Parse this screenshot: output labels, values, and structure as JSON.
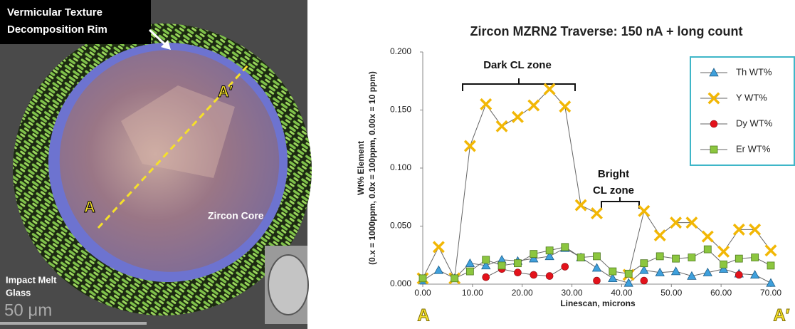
{
  "image": {
    "rim_label": [
      "Vermicular Texture",
      "Decomposition Rim"
    ],
    "section_start": "A",
    "section_end": "A′",
    "core_label": "Zircon Core",
    "matrix_label": [
      "Impact Melt",
      "Glass"
    ],
    "scale_label": "50 μm"
  },
  "chart_data": {
    "type": "line",
    "title": "Zircon MZRN2 Traverse: 150 nA + long count",
    "y_label": [
      "Wt% Element",
      "(0.x = 1000ppm, 0.0x = 100ppm, 0.00x = 10 ppm)"
    ],
    "x_label": "Linescan, microns",
    "annotations": {
      "dark_zone": "Dark CL zone",
      "bright_zone": [
        "Bright",
        "CL zone"
      ]
    },
    "endpoint_labels": [
      "A",
      "A′"
    ],
    "x": [
      0,
      3.2,
      6.4,
      9.5,
      12.7,
      15.9,
      19.1,
      22.3,
      25.5,
      28.6,
      31.8,
      35,
      38.2,
      41.4,
      44.5,
      47.7,
      50.9,
      54.1,
      57.3,
      60.5,
      63.6,
      66.8,
      70
    ],
    "series": [
      {
        "name": "Th WT%",
        "color": "#3fa0dc",
        "marker": "triangle",
        "values": [
          0.003,
          0.012,
          0.005,
          0.018,
          0.016,
          0.021,
          0.02,
          0.022,
          0.024,
          0.031,
          0.023,
          0.014,
          0.005,
          0.001,
          0.012,
          0.01,
          0.011,
          0.007,
          0.01,
          0.013,
          0.009,
          0.008,
          0.001
        ]
      },
      {
        "name": "Y WT%",
        "color": "#f2b705",
        "marker": "x",
        "values": [
          0.005,
          0.032,
          0.005,
          0.119,
          0.155,
          0.136,
          0.144,
          0.154,
          0.168,
          0.153,
          0.068,
          0.061,
          null,
          0.008,
          0.063,
          0.042,
          0.053,
          0.053,
          0.041,
          0.028,
          0.047,
          0.047,
          0.029
        ]
      },
      {
        "name": "Dy WT%",
        "color": "#e3121b",
        "marker": "circle",
        "values": [
          null,
          null,
          null,
          null,
          0.006,
          0.013,
          0.01,
          0.008,
          0.007,
          0.015,
          null,
          0.003,
          null,
          null,
          0.003,
          null,
          null,
          null,
          null,
          null,
          0.008,
          null,
          null
        ]
      },
      {
        "name": "Er WT%",
        "color": "#8cc63f",
        "marker": "square",
        "values": [
          0.005,
          null,
          0.005,
          0.011,
          0.021,
          0.016,
          0.018,
          0.026,
          0.029,
          0.032,
          0.023,
          0.024,
          0.011,
          0.009,
          0.018,
          0.024,
          0.022,
          0.023,
          0.03,
          0.017,
          0.022,
          0.023,
          0.016
        ]
      }
    ],
    "xlim": [
      0,
      70
    ],
    "xticks": [
      {
        "value": 0,
        "label": "0.00"
      },
      {
        "value": 10,
        "label": "10.00"
      },
      {
        "value": 20,
        "label": "20.00"
      },
      {
        "value": 30,
        "label": "30.00"
      },
      {
        "value": 40,
        "label": "40.00"
      },
      {
        "value": 50,
        "label": "50.00"
      },
      {
        "value": 60,
        "label": "60.00"
      },
      {
        "value": 70,
        "label": "70.00"
      }
    ],
    "ylim": [
      0,
      0.2
    ],
    "yticks": [
      {
        "value": 0,
        "label": "0.000"
      },
      {
        "value": 0.05,
        "label": "0.050"
      },
      {
        "value": 0.1,
        "label": "0.100"
      },
      {
        "value": 0.15,
        "label": "0.150"
      },
      {
        "value": 0.2,
        "label": "0.200"
      }
    ],
    "grid": false,
    "legend": "top-right"
  }
}
